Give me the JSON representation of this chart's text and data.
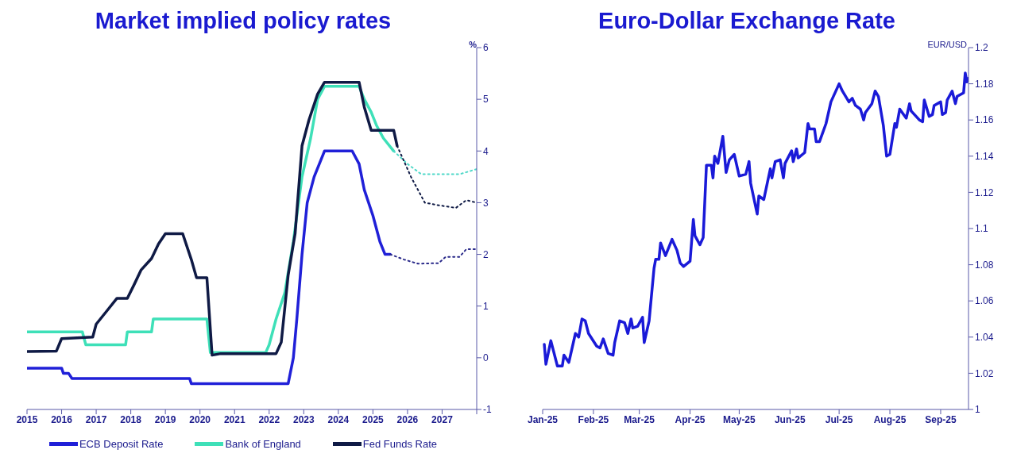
{
  "chart_data": [
    {
      "type": "line",
      "title": "Market implied policy rates",
      "ylabel": "%",
      "xlim": [
        2015,
        2028
      ],
      "xticks": [
        2015,
        2016,
        2017,
        2018,
        2019,
        2020,
        2021,
        2022,
        2023,
        2024,
        2025,
        2026,
        2027,
        {
          "value": 2028,
          "label": null
        }
      ],
      "ylim": [
        -1,
        6
      ],
      "yticks": [
        -1,
        0,
        1,
        2,
        3,
        4,
        5,
        6
      ],
      "legend": "bottom",
      "series": [
        {
          "name": "ECB Deposit Rate",
          "color": "#2020d8",
          "x": [
            2015.0,
            2016.0,
            2016.05,
            2016.2,
            2016.3,
            2019.7,
            2019.75,
            2022.55,
            2022.7,
            2022.8,
            2022.95,
            2023.1,
            2023.3,
            2023.45,
            2023.6,
            2024.4,
            2024.6,
            2024.75,
            2025.0,
            2025.2,
            2025.35,
            2025.5
          ],
          "values": [
            -0.2,
            -0.2,
            -0.3,
            -0.3,
            -0.4,
            -0.4,
            -0.5,
            -0.5,
            0.0,
            0.75,
            2.0,
            3.0,
            3.5,
            3.75,
            4.0,
            4.0,
            3.75,
            3.25,
            2.75,
            2.25,
            2.0,
            2.0
          ]
        },
        {
          "name": "Bank of England",
          "color": "#3ee0b8",
          "x": [
            2015.0,
            2016.6,
            2016.7,
            2017.85,
            2017.9,
            2018.6,
            2018.65,
            2020.2,
            2020.3,
            2021.9,
            2022.0,
            2022.2,
            2022.45,
            2022.7,
            2022.95,
            2023.2,
            2023.4,
            2023.6,
            2024.6,
            2024.75,
            2024.95,
            2025.1,
            2025.3,
            2025.6
          ],
          "values": [
            0.5,
            0.5,
            0.25,
            0.25,
            0.5,
            0.5,
            0.75,
            0.75,
            0.1,
            0.1,
            0.25,
            0.75,
            1.25,
            2.25,
            3.5,
            4.25,
            5.0,
            5.25,
            5.25,
            5.0,
            4.75,
            4.5,
            4.25,
            4.0
          ]
        },
        {
          "name": "Fed Funds Rate",
          "color": "#0f1a45",
          "x": [
            2015.0,
            2015.85,
            2016.0,
            2016.9,
            2017.0,
            2017.3,
            2017.6,
            2017.9,
            2018.1,
            2018.3,
            2018.6,
            2018.8,
            2019.0,
            2019.5,
            2019.75,
            2019.9,
            2020.2,
            2020.35,
            2020.6,
            2022.2,
            2022.35,
            2022.55,
            2022.75,
            2022.95,
            2023.15,
            2023.4,
            2023.6,
            2024.6,
            2024.75,
            2024.95,
            2025.6,
            2025.7
          ],
          "values": [
            0.12,
            0.13,
            0.37,
            0.4,
            0.65,
            0.9,
            1.15,
            1.15,
            1.42,
            1.7,
            1.92,
            2.2,
            2.4,
            2.4,
            1.9,
            1.55,
            1.55,
            0.05,
            0.08,
            0.08,
            0.3,
            1.6,
            2.4,
            4.1,
            4.6,
            5.1,
            5.33,
            5.33,
            4.85,
            4.4,
            4.4,
            4.1
          ]
        },
        {
          "color": "#2a2a8a",
          "line_style": "dotted",
          "x": [
            2025.5,
            2025.9,
            2026.3,
            2026.9,
            2027.1,
            2027.5,
            2027.7,
            2028.0
          ],
          "values": [
            2.0,
            1.9,
            1.82,
            1.83,
            1.95,
            1.95,
            2.1,
            2.1
          ]
        },
        {
          "color": "#4fd8c8",
          "line_style": "dotted",
          "x": [
            2025.6,
            2026.0,
            2026.4,
            2027.5,
            2028.0
          ],
          "values": [
            4.0,
            3.75,
            3.55,
            3.55,
            3.65
          ]
        },
        {
          "color": "#0f1a45",
          "line_style": "dotted",
          "x": [
            2025.7,
            2026.1,
            2026.5,
            2026.9,
            2027.4,
            2027.7,
            2028.0
          ],
          "values": [
            4.1,
            3.5,
            3.0,
            2.95,
            2.9,
            3.05,
            3.0
          ]
        }
      ]
    },
    {
      "type": "line",
      "title": "Euro-Dollar Exchange Rate",
      "ylabel": "EUR/USD",
      "xlim": [
        "2025-01-01",
        "2025-09-18"
      ],
      "xticks": [
        {
          "value": "2025-01-01",
          "label": "Jan-25"
        },
        {
          "value": "2025-02-01",
          "label": "Feb-25"
        },
        {
          "value": "2025-03-01",
          "label": "Mar-25"
        },
        {
          "value": "2025-04-01",
          "label": "Apr-25"
        },
        {
          "value": "2025-05-01",
          "label": "May-25"
        },
        {
          "value": "2025-06-01",
          "label": "Jun-25"
        },
        {
          "value": "2025-07-01",
          "label": "Jul-25"
        },
        {
          "value": "2025-08-01",
          "label": "Aug-25"
        },
        {
          "value": "2025-09-01",
          "label": "Sep-25"
        }
      ],
      "ylim": [
        1,
        1.2
      ],
      "yticks": [
        1,
        1.02,
        1.04,
        1.06,
        1.08,
        1.1,
        1.12,
        1.14,
        1.16,
        1.18,
        1.2
      ],
      "series": [
        {
          "color": "#1a1ad8",
          "x": [
            "2025-01-02",
            "2025-01-03",
            "2025-01-06",
            "2025-01-10",
            "2025-01-13",
            "2025-01-14",
            "2025-01-17",
            "2025-01-21",
            "2025-01-23",
            "2025-01-25",
            "2025-01-27",
            "2025-01-29",
            "2025-02-03",
            "2025-02-05",
            "2025-02-07",
            "2025-02-10",
            "2025-02-13",
            "2025-02-14",
            "2025-02-17",
            "2025-02-20",
            "2025-02-22",
            "2025-02-24",
            "2025-02-25",
            "2025-02-28",
            "2025-03-03",
            "2025-03-04",
            "2025-03-07",
            "2025-03-10",
            "2025-03-11",
            "2025-03-13",
            "2025-03-14",
            "2025-03-17",
            "2025-03-21",
            "2025-03-24",
            "2025-03-26",
            "2025-03-28",
            "2025-04-01",
            "2025-04-03",
            "2025-04-04",
            "2025-04-07",
            "2025-04-09",
            "2025-04-11",
            "2025-04-14",
            "2025-04-15",
            "2025-04-16",
            "2025-04-18",
            "2025-04-21",
            "2025-04-23",
            "2025-04-25",
            "2025-04-28",
            "2025-05-01",
            "2025-05-05",
            "2025-05-07",
            "2025-05-08",
            "2025-05-12",
            "2025-05-13",
            "2025-05-16",
            "2025-05-20",
            "2025-05-21",
            "2025-05-23",
            "2025-05-26",
            "2025-05-28",
            "2025-05-29",
            "2025-06-02",
            "2025-06-03",
            "2025-06-05",
            "2025-06-06",
            "2025-06-10",
            "2025-06-12",
            "2025-06-13",
            "2025-06-16",
            "2025-06-17",
            "2025-06-19",
            "2025-06-23",
            "2025-06-26",
            "2025-07-01",
            "2025-07-03",
            "2025-07-07",
            "2025-07-09",
            "2025-07-11",
            "2025-07-14",
            "2025-07-16",
            "2025-07-17",
            "2025-07-21",
            "2025-07-23",
            "2025-07-25",
            "2025-07-28",
            "2025-07-30",
            "2025-08-01",
            "2025-08-04",
            "2025-08-05",
            "2025-08-07",
            "2025-08-11",
            "2025-08-13",
            "2025-08-14",
            "2025-08-19",
            "2025-08-21",
            "2025-08-22",
            "2025-08-25",
            "2025-08-27",
            "2025-08-28",
            "2025-09-01",
            "2025-09-02",
            "2025-09-04",
            "2025-09-05",
            "2025-09-08",
            "2025-09-10",
            "2025-09-11",
            "2025-09-15",
            "2025-09-16",
            "2025-09-17",
            "2025-09-18"
          ],
          "values": [
            1.036,
            1.025,
            1.038,
            1.024,
            1.024,
            1.03,
            1.026,
            1.042,
            1.04,
            1.05,
            1.049,
            1.042,
            1.035,
            1.034,
            1.039,
            1.031,
            1.03,
            1.037,
            1.049,
            1.048,
            1.042,
            1.05,
            1.045,
            1.046,
            1.051,
            1.037,
            1.049,
            1.078,
            1.083,
            1.083,
            1.092,
            1.085,
            1.094,
            1.088,
            1.081,
            1.079,
            1.082,
            1.105,
            1.096,
            1.091,
            1.095,
            1.135,
            1.135,
            1.128,
            1.14,
            1.136,
            1.151,
            1.131,
            1.138,
            1.141,
            1.129,
            1.13,
            1.137,
            1.125,
            1.108,
            1.118,
            1.116,
            1.133,
            1.128,
            1.137,
            1.138,
            1.128,
            1.136,
            1.143,
            1.137,
            1.144,
            1.139,
            1.142,
            1.158,
            1.155,
            1.155,
            1.148,
            1.148,
            1.158,
            1.17,
            1.18,
            1.176,
            1.17,
            1.172,
            1.168,
            1.166,
            1.16,
            1.164,
            1.169,
            1.176,
            1.173,
            1.157,
            1.14,
            1.141,
            1.158,
            1.156,
            1.166,
            1.161,
            1.169,
            1.165,
            1.16,
            1.159,
            1.171,
            1.162,
            1.163,
            1.168,
            1.17,
            1.163,
            1.164,
            1.171,
            1.176,
            1.169,
            1.173,
            1.175,
            1.186,
            1.181,
            1.183
          ]
        }
      ]
    }
  ]
}
